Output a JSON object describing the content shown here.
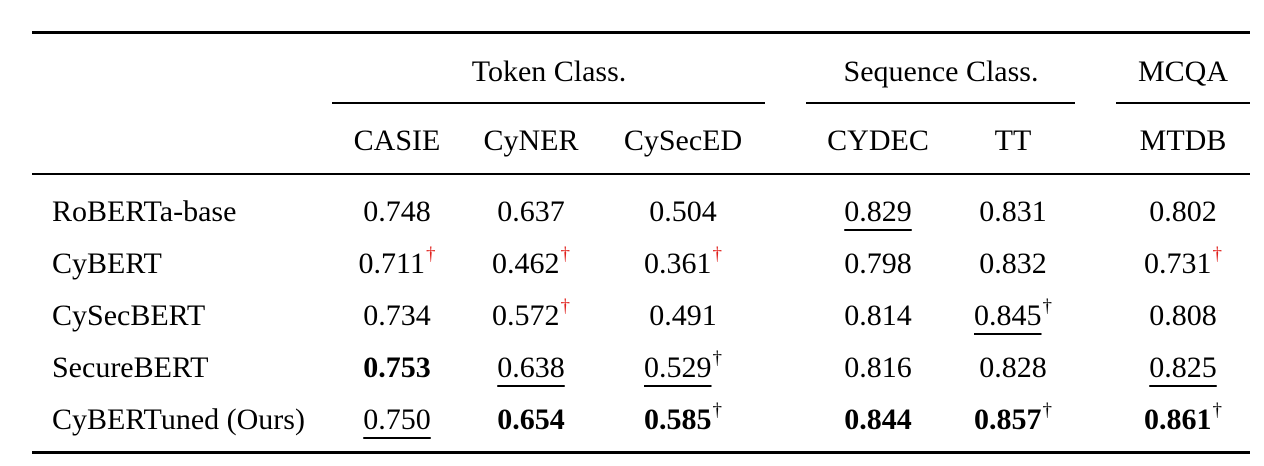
{
  "table": {
    "groups": [
      {
        "label": "Token Class."
      },
      {
        "label": "Sequence Class."
      },
      {
        "label": "MCQA"
      }
    ],
    "columns": [
      "CASIE",
      "CyNER",
      "CySecED",
      "CYDEC",
      "TT",
      "MTDB"
    ],
    "rows": [
      {
        "model": "RoBERTa-base",
        "cells": [
          {
            "v": "0.748"
          },
          {
            "v": "0.637"
          },
          {
            "v": "0.504"
          },
          {
            "v": "0.829",
            "underline": true
          },
          {
            "v": "0.831"
          },
          {
            "v": "0.802"
          }
        ]
      },
      {
        "model": "CyBERT",
        "cells": [
          {
            "v": "0.711",
            "dagger": "red"
          },
          {
            "v": "0.462",
            "dagger": "red"
          },
          {
            "v": "0.361",
            "dagger": "red"
          },
          {
            "v": "0.798"
          },
          {
            "v": "0.832"
          },
          {
            "v": "0.731",
            "dagger": "red"
          }
        ]
      },
      {
        "model": "CySecBERT",
        "cells": [
          {
            "v": "0.734"
          },
          {
            "v": "0.572",
            "dagger": "red"
          },
          {
            "v": "0.491"
          },
          {
            "v": "0.814"
          },
          {
            "v": "0.845",
            "dagger": "black",
            "underline": true
          },
          {
            "v": "0.808"
          }
        ]
      },
      {
        "model": "SecureBERT",
        "cells": [
          {
            "v": "0.753",
            "bold": true
          },
          {
            "v": "0.638",
            "underline": true
          },
          {
            "v": "0.529",
            "dagger": "black",
            "underline": true
          },
          {
            "v": "0.816"
          },
          {
            "v": "0.828"
          },
          {
            "v": "0.825",
            "underline": true
          }
        ]
      },
      {
        "model": "CyBERTuned (Ours)",
        "cells": [
          {
            "v": "0.750",
            "underline": true
          },
          {
            "v": "0.654",
            "bold": true
          },
          {
            "v": "0.585",
            "bold": true,
            "dagger": "black"
          },
          {
            "v": "0.844",
            "bold": true
          },
          {
            "v": "0.857",
            "bold": true,
            "dagger": "black"
          },
          {
            "v": "0.861",
            "bold": true,
            "dagger": "black"
          }
        ]
      }
    ],
    "dagger_symbol": "†",
    "colors": {
      "text": "#000000",
      "dagger_red": "#e0201c"
    }
  }
}
